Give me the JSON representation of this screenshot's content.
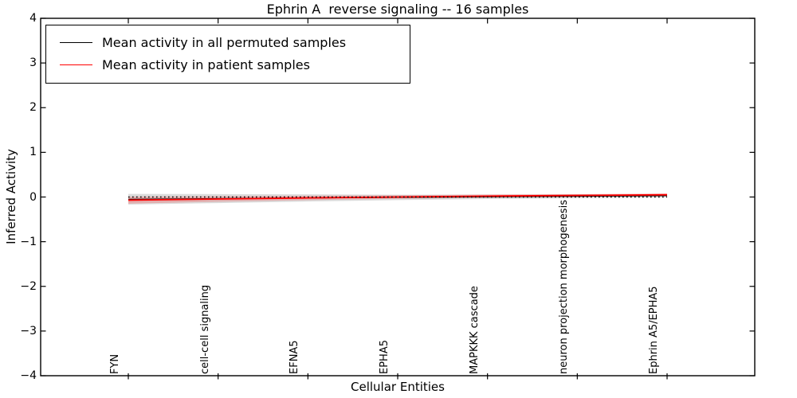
{
  "chart_data": {
    "type": "line",
    "title": "Ephrin A  reverse signaling -- 16 samples",
    "xlabel": "Cellular Entities",
    "ylabel": "Inferred Activity",
    "ylim": [
      -4,
      4
    ],
    "ytick_labels": [
      "4",
      "3",
      "2",
      "1",
      "0",
      "−1",
      "−2",
      "−3",
      "−4"
    ],
    "ytick_values": [
      4,
      3,
      2,
      1,
      0,
      -1,
      -2,
      -3,
      -4
    ],
    "categories": [
      "FYN",
      "cell-cell signaling",
      "EFNA5",
      "EPHA5",
      "MAPKKK cascade",
      "neuron projection morphogenesis",
      "Ephrin A5/EPHA5"
    ],
    "series": [
      {
        "name": "Mean activity in all permuted samples",
        "color": "#000000",
        "values": [
          -0.05,
          -0.035,
          -0.02,
          -0.008,
          0.005,
          0.018,
          0.03
        ],
        "band_halfwidth": [
          0.12,
          0.1,
          0.08,
          0.06,
          0.05,
          0.045,
          0.04
        ],
        "band_color": "#999999",
        "band_opacity": 0.35
      },
      {
        "name": "Mean activity in patient samples",
        "color": "#ff0000",
        "values": [
          -0.07,
          -0.045,
          -0.02,
          0.0,
          0.02,
          0.035,
          0.05
        ],
        "band_halfwidth": [
          0.08,
          0.06,
          0.05,
          0.04,
          0.035,
          0.03,
          0.03
        ],
        "band_color": "#ff0000",
        "band_opacity": 0.2
      }
    ],
    "reference_line": {
      "y": 0,
      "style": "dotted",
      "color": "#000000"
    },
    "legend_position": "upper left",
    "grid": false,
    "frame_color": "#000000"
  }
}
